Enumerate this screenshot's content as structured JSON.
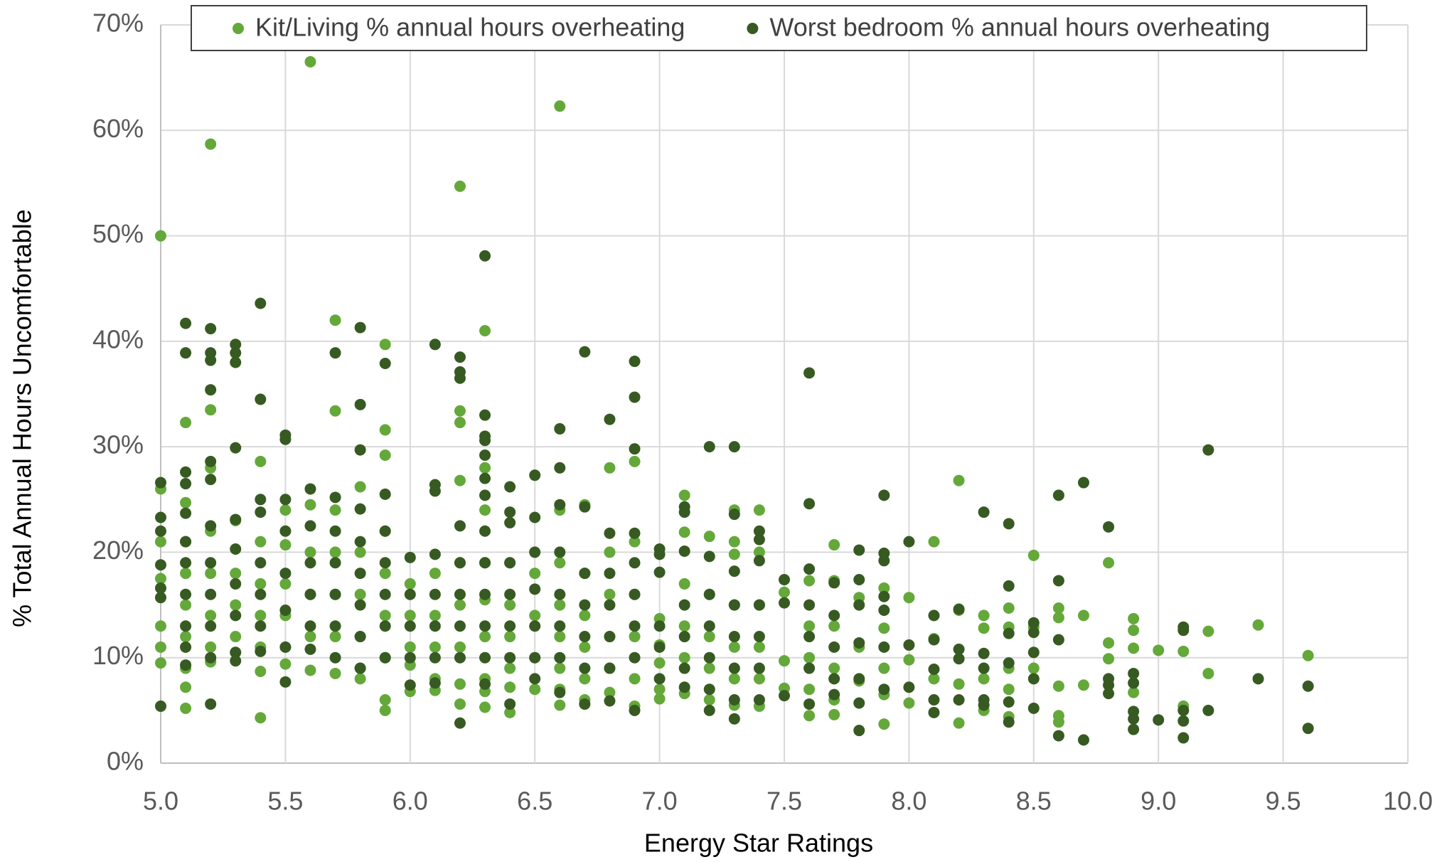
{
  "chart_data": {
    "type": "scatter",
    "x_label": "Energy Star Ratings",
    "y_label": "% Total Annual Hours Uncomfortable",
    "xlim": [
      5,
      10
    ],
    "ylim": [
      0,
      70
    ],
    "xticks": [
      {
        "value": 5,
        "label": "5.0"
      },
      {
        "value": 5.5,
        "label": "5.5"
      },
      {
        "value": 6,
        "label": "6.0"
      },
      {
        "value": 6.5,
        "label": "6.5"
      },
      {
        "value": 7,
        "label": "7.0"
      },
      {
        "value": 7.5,
        "label": "7.5"
      },
      {
        "value": 8,
        "label": "8.0"
      },
      {
        "value": 8.5,
        "label": "8.5"
      },
      {
        "value": 9,
        "label": "9.0"
      },
      {
        "value": 9.5,
        "label": "9.5"
      },
      {
        "value": 10,
        "label": "10.0"
      }
    ],
    "yticks": [
      {
        "value": 0,
        "label": "0%"
      },
      {
        "value": 10,
        "label": "10%"
      },
      {
        "value": 20,
        "label": "20%"
      },
      {
        "value": 30,
        "label": "30%"
      },
      {
        "value": 40,
        "label": "40%"
      },
      {
        "value": 50,
        "label": "50%"
      },
      {
        "value": 60,
        "label": "60%"
      },
      {
        "value": 70,
        "label": "70%"
      }
    ],
    "grid": true,
    "legend": "top",
    "series": [
      {
        "name": "Kit/Living % annual hours overheating",
        "color": "#64a83a",
        "x": [
          5,
          5,
          5,
          5,
          5,
          5,
          5,
          5.1,
          5.1,
          5.1,
          5.1,
          5.1,
          5.1,
          5.1,
          5.1,
          5.1,
          5.2,
          5.2,
          5.2,
          5.2,
          5.2,
          5.2,
          5.2,
          5.2,
          5.3,
          5.3,
          5.3,
          5.3,
          5.3,
          5.4,
          5.4,
          5.4,
          5.4,
          5.4,
          5.4,
          5.4,
          5.5,
          5.5,
          5.5,
          5.5,
          5.5,
          5.5,
          5.6,
          5.6,
          5.6,
          5.6,
          5.6,
          5.6,
          5.7,
          5.7,
          5.7,
          5.7,
          5.7,
          5.7,
          5.7,
          5.8,
          5.8,
          5.8,
          5.8,
          5.8,
          5.8,
          5.9,
          5.9,
          5.9,
          5.9,
          5.9,
          5.9,
          5.9,
          5.9,
          5.9,
          6,
          6,
          6,
          6,
          6,
          6.1,
          6.1,
          6.1,
          6.1,
          6.1,
          6.2,
          6.2,
          6.2,
          6.2,
          6.2,
          6.2,
          6.2,
          6.2,
          6.2,
          6.3,
          6.3,
          6.3,
          6.3,
          6.3,
          6.3,
          6.3,
          6.3,
          6.3,
          6.4,
          6.4,
          6.4,
          6.4,
          6.4,
          6.4,
          6.5,
          6.5,
          6.5,
          6.5,
          6.6,
          6.6,
          6.6,
          6.6,
          6.6,
          6.6,
          6.6,
          6.6,
          6.7,
          6.7,
          6.7,
          6.7,
          6.7,
          6.7,
          6.8,
          6.8,
          6.8,
          6.8,
          6.8,
          6.8,
          6.9,
          6.9,
          6.9,
          6.9,
          6.9,
          6.9,
          7,
          7,
          7,
          7,
          7,
          7.1,
          7.1,
          7.1,
          7.1,
          7.1,
          7.1,
          7.2,
          7.2,
          7.2,
          7.2,
          7.2,
          7.3,
          7.3,
          7.3,
          7.3,
          7.3,
          7.3,
          7.3,
          7.4,
          7.4,
          7.4,
          7.4,
          7.4,
          7.4,
          7.5,
          7.5,
          7.5,
          7.6,
          7.6,
          7.6,
          7.6,
          7.6,
          7.7,
          7.7,
          7.7,
          7.7,
          7.7,
          7.7,
          7.8,
          7.8,
          7.8,
          7.9,
          7.9,
          7.9,
          7.9,
          7.9,
          8,
          8,
          8,
          8.1,
          8.1,
          8.1,
          8.2,
          8.2,
          8.2,
          8.2,
          8.3,
          8.3,
          8.3,
          8.3,
          8.4,
          8.4,
          8.4,
          8.4,
          8.4,
          8.5,
          8.5,
          8.5,
          8.6,
          8.6,
          8.6,
          8.6,
          8.6,
          8.7,
          8.7,
          8.8,
          8.8,
          8.8,
          8.9,
          8.9,
          8.9,
          8.9,
          9,
          9.1,
          9.1,
          9.2,
          9.2,
          9.4,
          9.6
        ],
        "values": [
          50,
          26,
          21,
          17.5,
          13,
          11,
          9.5,
          32.3,
          24.7,
          21,
          18,
          15,
          12,
          9,
          7.2,
          5.2,
          58.7,
          33.5,
          28,
          22,
          18,
          14,
          11,
          9.6,
          23,
          18,
          15,
          12,
          10.5,
          28.6,
          21,
          17,
          14,
          11,
          8.7,
          4.3,
          24,
          20.7,
          17,
          14,
          11,
          9.4,
          66.5,
          24.5,
          20,
          16,
          12,
          8.8,
          42,
          33.4,
          24,
          20,
          16,
          12,
          8.5,
          26.2,
          20,
          16,
          12,
          9,
          8,
          39.7,
          31.6,
          29.2,
          22,
          18,
          14,
          10,
          6,
          5,
          17,
          14,
          11,
          9.3,
          6.8,
          18,
          14,
          11,
          8,
          6.9,
          54.7,
          33.4,
          32.3,
          26.8,
          19,
          15,
          11,
          7.5,
          5.6,
          41,
          28,
          24,
          19,
          15.5,
          12,
          8,
          6.8,
          5.3,
          19,
          15,
          12,
          9,
          7.2,
          4.8,
          18,
          14,
          10,
          7,
          62.3,
          24,
          19,
          15,
          12,
          9,
          7,
          5.5,
          24.5,
          18,
          14,
          11,
          8,
          6,
          28,
          20,
          16,
          12,
          9,
          6.7,
          28.6,
          21,
          16,
          12,
          8,
          5.4,
          13.7,
          11.2,
          9.5,
          7,
          6.1,
          25.4,
          21.9,
          17,
          13,
          10,
          6.6,
          21.5,
          16,
          12,
          9,
          6,
          24,
          21,
          19.8,
          15,
          11,
          8,
          5.5,
          24,
          20,
          15,
          11,
          8,
          5.4,
          16.2,
          9.7,
          7.1,
          17.3,
          13,
          10,
          7,
          4.5,
          20.7,
          17.3,
          13,
          9,
          6,
          4.6,
          15.7,
          11,
          7.8,
          16.6,
          12.8,
          9,
          6.5,
          3.7,
          15.7,
          9.8,
          5.7,
          21,
          11.8,
          8,
          26.8,
          14.5,
          7.5,
          3.8,
          14,
          12.8,
          8,
          5,
          14.7,
          12.9,
          9,
          7,
          4.4,
          19.7,
          12.9,
          9,
          14.7,
          13.8,
          7.3,
          4.5,
          3.9,
          14,
          7.4,
          19,
          11.4,
          9.9,
          13.7,
          12.6,
          10.9,
          6.7,
          10.7,
          10.6,
          5.4,
          12.5,
          8.5,
          13.1,
          10.2
        ]
      },
      {
        "name": "Worst bedroom % annual hours overheating",
        "color": "#375a22",
        "x": [
          5,
          5,
          5,
          5,
          5,
          5,
          5,
          5.1,
          5.1,
          5.1,
          5.1,
          5.1,
          5.1,
          5.1,
          5.1,
          5.1,
          5.1,
          5.1,
          5.2,
          5.2,
          5.2,
          5.2,
          5.2,
          5.2,
          5.2,
          5.2,
          5.2,
          5.2,
          5.2,
          5.2,
          5.3,
          5.3,
          5.3,
          5.3,
          5.3,
          5.3,
          5.3,
          5.3,
          5.3,
          5.3,
          5.4,
          5.4,
          5.4,
          5.4,
          5.4,
          5.4,
          5.4,
          5.4,
          5.5,
          5.5,
          5.5,
          5.5,
          5.5,
          5.5,
          5.5,
          5.5,
          5.6,
          5.6,
          5.6,
          5.6,
          5.6,
          5.6,
          5.7,
          5.7,
          5.7,
          5.7,
          5.7,
          5.7,
          5.7,
          5.8,
          5.8,
          5.8,
          5.8,
          5.8,
          5.8,
          5.8,
          5.8,
          5.8,
          5.9,
          5.9,
          5.9,
          5.9,
          5.9,
          5.9,
          5.9,
          6,
          6,
          6,
          6,
          6,
          6.1,
          6.1,
          6.1,
          6.1,
          6.1,
          6.1,
          6.1,
          6.1,
          6.2,
          6.2,
          6.2,
          6.2,
          6.2,
          6.2,
          6.2,
          6.2,
          6.2,
          6.3,
          6.3,
          6.3,
          6.3,
          6.3,
          6.3,
          6.3,
          6.3,
          6.3,
          6.3,
          6.3,
          6.3,
          6.3,
          6.4,
          6.4,
          6.4,
          6.4,
          6.4,
          6.4,
          6.4,
          6.4,
          6.5,
          6.5,
          6.5,
          6.5,
          6.5,
          6.5,
          6.5,
          6.6,
          6.6,
          6.6,
          6.6,
          6.6,
          6.6,
          6.6,
          6.6,
          6.7,
          6.7,
          6.7,
          6.7,
          6.7,
          6.7,
          6.7,
          6.8,
          6.8,
          6.8,
          6.8,
          6.8,
          6.8,
          6.8,
          6.9,
          6.9,
          6.9,
          6.9,
          6.9,
          6.9,
          6.9,
          6.9,
          6.9,
          7,
          7,
          7,
          7,
          7,
          7,
          7.1,
          7.1,
          7.1,
          7.1,
          7.1,
          7.1,
          7.1,
          7.2,
          7.2,
          7.2,
          7.2,
          7.2,
          7.2,
          7.2,
          7.3,
          7.3,
          7.3,
          7.3,
          7.3,
          7.3,
          7.3,
          7.3,
          7.4,
          7.4,
          7.4,
          7.4,
          7.4,
          7.4,
          7.4,
          7.5,
          7.5,
          7.5,
          7.6,
          7.6,
          7.6,
          7.6,
          7.6,
          7.6,
          7.6,
          7.7,
          7.7,
          7.7,
          7.7,
          7.7,
          7.8,
          7.8,
          7.8,
          7.8,
          7.8,
          7.8,
          7.8,
          7.9,
          7.9,
          7.9,
          7.9,
          7.9,
          7.9,
          7.9,
          8,
          8,
          8,
          8.1,
          8.1,
          8.1,
          8.1,
          8.1,
          8.2,
          8.2,
          8.2,
          8.2,
          8.3,
          8.3,
          8.3,
          8.3,
          8.3,
          8.4,
          8.4,
          8.4,
          8.4,
          8.4,
          8.4,
          8.5,
          8.5,
          8.5,
          8.5,
          8.5,
          8.6,
          8.6,
          8.6,
          8.6,
          8.7,
          8.7,
          8.8,
          8.8,
          8.8,
          8.8,
          8.9,
          8.9,
          8.9,
          8.9,
          8.9,
          9,
          9.1,
          9.1,
          9.1,
          9.1,
          9.1,
          9.2,
          9.2,
          9.4,
          9.6,
          9.6
        ],
        "values": [
          26.6,
          23.3,
          22,
          18.8,
          16.6,
          15.7,
          5.4,
          41.7,
          38.9,
          27.6,
          26.5,
          23.7,
          21,
          19,
          16,
          13,
          11,
          9.3,
          41.2,
          38.9,
          38.2,
          35.4,
          28.6,
          26.9,
          22.5,
          19,
          16,
          13,
          10,
          5.6,
          39.7,
          38.9,
          38,
          29.9,
          23.1,
          20.3,
          17,
          14,
          10.5,
          9.7,
          43.6,
          34.5,
          25,
          23.8,
          19,
          16,
          13,
          10.6,
          31.1,
          30.7,
          25,
          22,
          18,
          14.5,
          11,
          7.7,
          26,
          22.5,
          19,
          16,
          13,
          10.8,
          38.9,
          25.2,
          22,
          19,
          16,
          13,
          10,
          41.3,
          34,
          29.7,
          24.1,
          21,
          18,
          15,
          12,
          9,
          37.9,
          25.5,
          22,
          19,
          16,
          13,
          10,
          19.5,
          16,
          13,
          10,
          7.4,
          39.7,
          26.4,
          25.8,
          19.8,
          16,
          13,
          10,
          7.6,
          38.5,
          37.1,
          36.5,
          22.5,
          19,
          16,
          13,
          10,
          3.8,
          48.1,
          33,
          31,
          30.6,
          29.2,
          27,
          25.4,
          22,
          19,
          16,
          13,
          10,
          7.5,
          26.2,
          23.8,
          22.8,
          19,
          16,
          13,
          10,
          5.6,
          27.3,
          23.3,
          20,
          16.5,
          13,
          10,
          8,
          31.7,
          28,
          24.5,
          20,
          16,
          13,
          10,
          6.7,
          39,
          24.3,
          18,
          15,
          12,
          9,
          5.6,
          32.6,
          21.8,
          18,
          15,
          12,
          9,
          5.9,
          38.1,
          34.7,
          29.8,
          21.8,
          19,
          16,
          13,
          10,
          5,
          20.3,
          19.8,
          18.1,
          13,
          11,
          8,
          24.3,
          23.8,
          20.1,
          15,
          12,
          9,
          7.2,
          30,
          19.6,
          16,
          13,
          10,
          7,
          5,
          30,
          23.6,
          18.2,
          15,
          12,
          9,
          6,
          4.2,
          22,
          21.2,
          19.2,
          15,
          12,
          9,
          6,
          17.4,
          15.2,
          6.4,
          37,
          24.6,
          18.4,
          15,
          12,
          9,
          5.6,
          17.1,
          14,
          11,
          8,
          6.5,
          20.2,
          17.4,
          15,
          11.4,
          8,
          5.7,
          3.1,
          25.4,
          19.9,
          19.2,
          15.8,
          14.5,
          11,
          7,
          21,
          11.2,
          7.2,
          14,
          11.7,
          8.9,
          6,
          4.8,
          14.6,
          10.8,
          9.9,
          6,
          23.8,
          10.4,
          9,
          6,
          5.5,
          22.7,
          16.8,
          12.3,
          9.5,
          5.8,
          3.9,
          13.3,
          12.4,
          10.5,
          8,
          5.2,
          25.4,
          17.3,
          11.7,
          2.6,
          26.6,
          2.2,
          22.4,
          8,
          7.4,
          6.6,
          8.5,
          7.6,
          4.9,
          4.2,
          3.2,
          4.1,
          12.9,
          12.6,
          5,
          4,
          2.4,
          29.7,
          5,
          8,
          7.3,
          3.3
        ]
      }
    ]
  }
}
